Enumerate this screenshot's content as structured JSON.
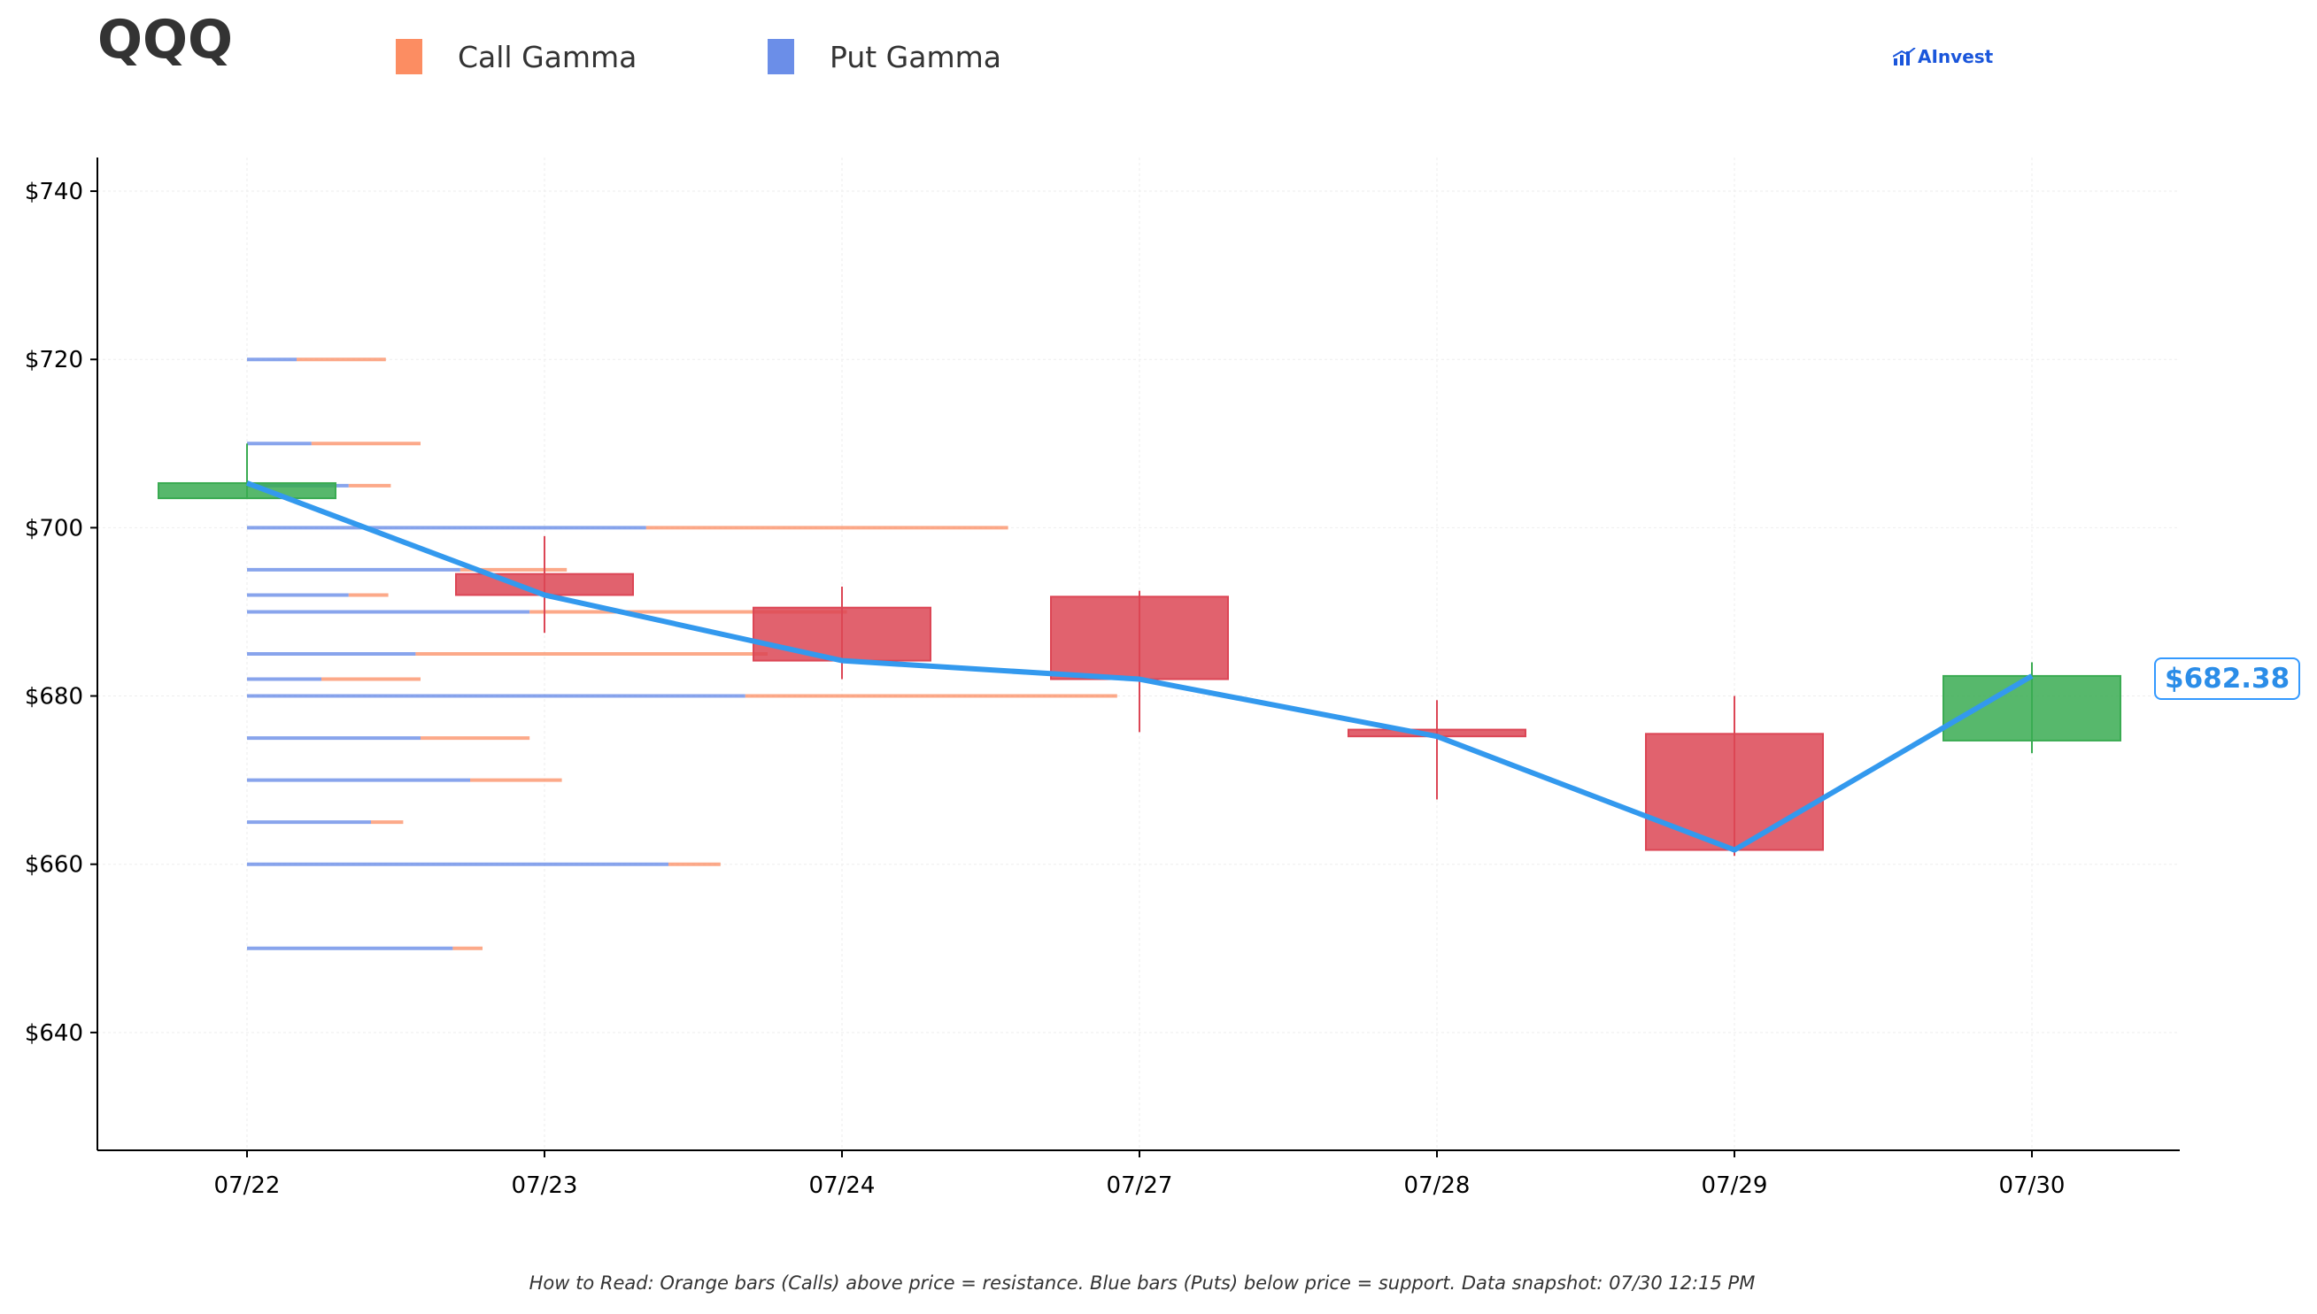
{
  "ticker": "QQQ",
  "legend": [
    {
      "label": "Call Gamma",
      "color": "#fc8d62"
    },
    {
      "label": "Put Gamma",
      "color": "#6b8ee8"
    }
  ],
  "brand": "AInvest",
  "footer": "How to Read: Orange bars (Calls) above price = resistance. Blue bars (Puts) below price = support. Data snapshot: 07/30 12:15 PM",
  "price_label": "$682.38",
  "colors": {
    "up": "#3aab52",
    "down": "#dc4655",
    "price_line": "#3399ee",
    "call": "#fc8d62",
    "put": "#6b8ee8"
  },
  "chart_data": {
    "type": "candlestick",
    "categories": [
      "07/22",
      "07/23",
      "07/24",
      "07/27",
      "07/28",
      "07/29",
      "07/30"
    ],
    "ylim": [
      626,
      744
    ],
    "yticks": [
      640,
      660,
      680,
      700,
      720,
      740
    ],
    "ytick_prefix": "$",
    "grid": true,
    "candles": [
      {
        "date": "07/22",
        "open": 703.5,
        "close": 705.3,
        "high": 710,
        "low": 703.5
      },
      {
        "date": "07/23",
        "open": 694.5,
        "close": 692,
        "high": 699,
        "low": 687.5
      },
      {
        "date": "07/24",
        "open": 690.5,
        "close": 684.2,
        "high": 693,
        "low": 682
      },
      {
        "date": "07/27",
        "open": 691.8,
        "close": 682,
        "high": 692.5,
        "low": 675.7
      },
      {
        "date": "07/28",
        "open": 676,
        "close": 675.2,
        "high": 679.5,
        "low": 667.7
      },
      {
        "date": "07/29",
        "open": 675.5,
        "close": 661.7,
        "high": 680,
        "low": 661
      },
      {
        "date": "07/30",
        "open": 674.7,
        "close": 682.38,
        "high": 684,
        "low": 673.2
      }
    ],
    "price_line": [
      705.3,
      692,
      684.2,
      682,
      675.2,
      661.7,
      682.38
    ],
    "gamma_levels": [
      {
        "strike": 720,
        "put": 0.2,
        "call": 0.36
      },
      {
        "strike": 710,
        "put": 0.26,
        "call": 0.44
      },
      {
        "strike": 705,
        "put": 0.41,
        "call": 0.17
      },
      {
        "strike": 700,
        "put": 1.61,
        "call": 1.46
      },
      {
        "strike": 695,
        "put": 0.86,
        "call": 0.43
      },
      {
        "strike": 692,
        "put": 0.41,
        "call": 0.16
      },
      {
        "strike": 690,
        "put": 1.14,
        "call": 1.28
      },
      {
        "strike": 685,
        "put": 0.68,
        "call": 1.42
      },
      {
        "strike": 682,
        "put": 0.3,
        "call": 0.4
      },
      {
        "strike": 680,
        "put": 2.01,
        "call": 1.5
      },
      {
        "strike": 675,
        "put": 0.7,
        "call": 0.44
      },
      {
        "strike": 670,
        "put": 0.9,
        "call": 0.37
      },
      {
        "strike": 665,
        "put": 0.5,
        "call": 0.13
      },
      {
        "strike": 660,
        "put": 1.7,
        "call": 0.21
      },
      {
        "strike": 650,
        "put": 0.83,
        "call": 0.12
      }
    ]
  }
}
